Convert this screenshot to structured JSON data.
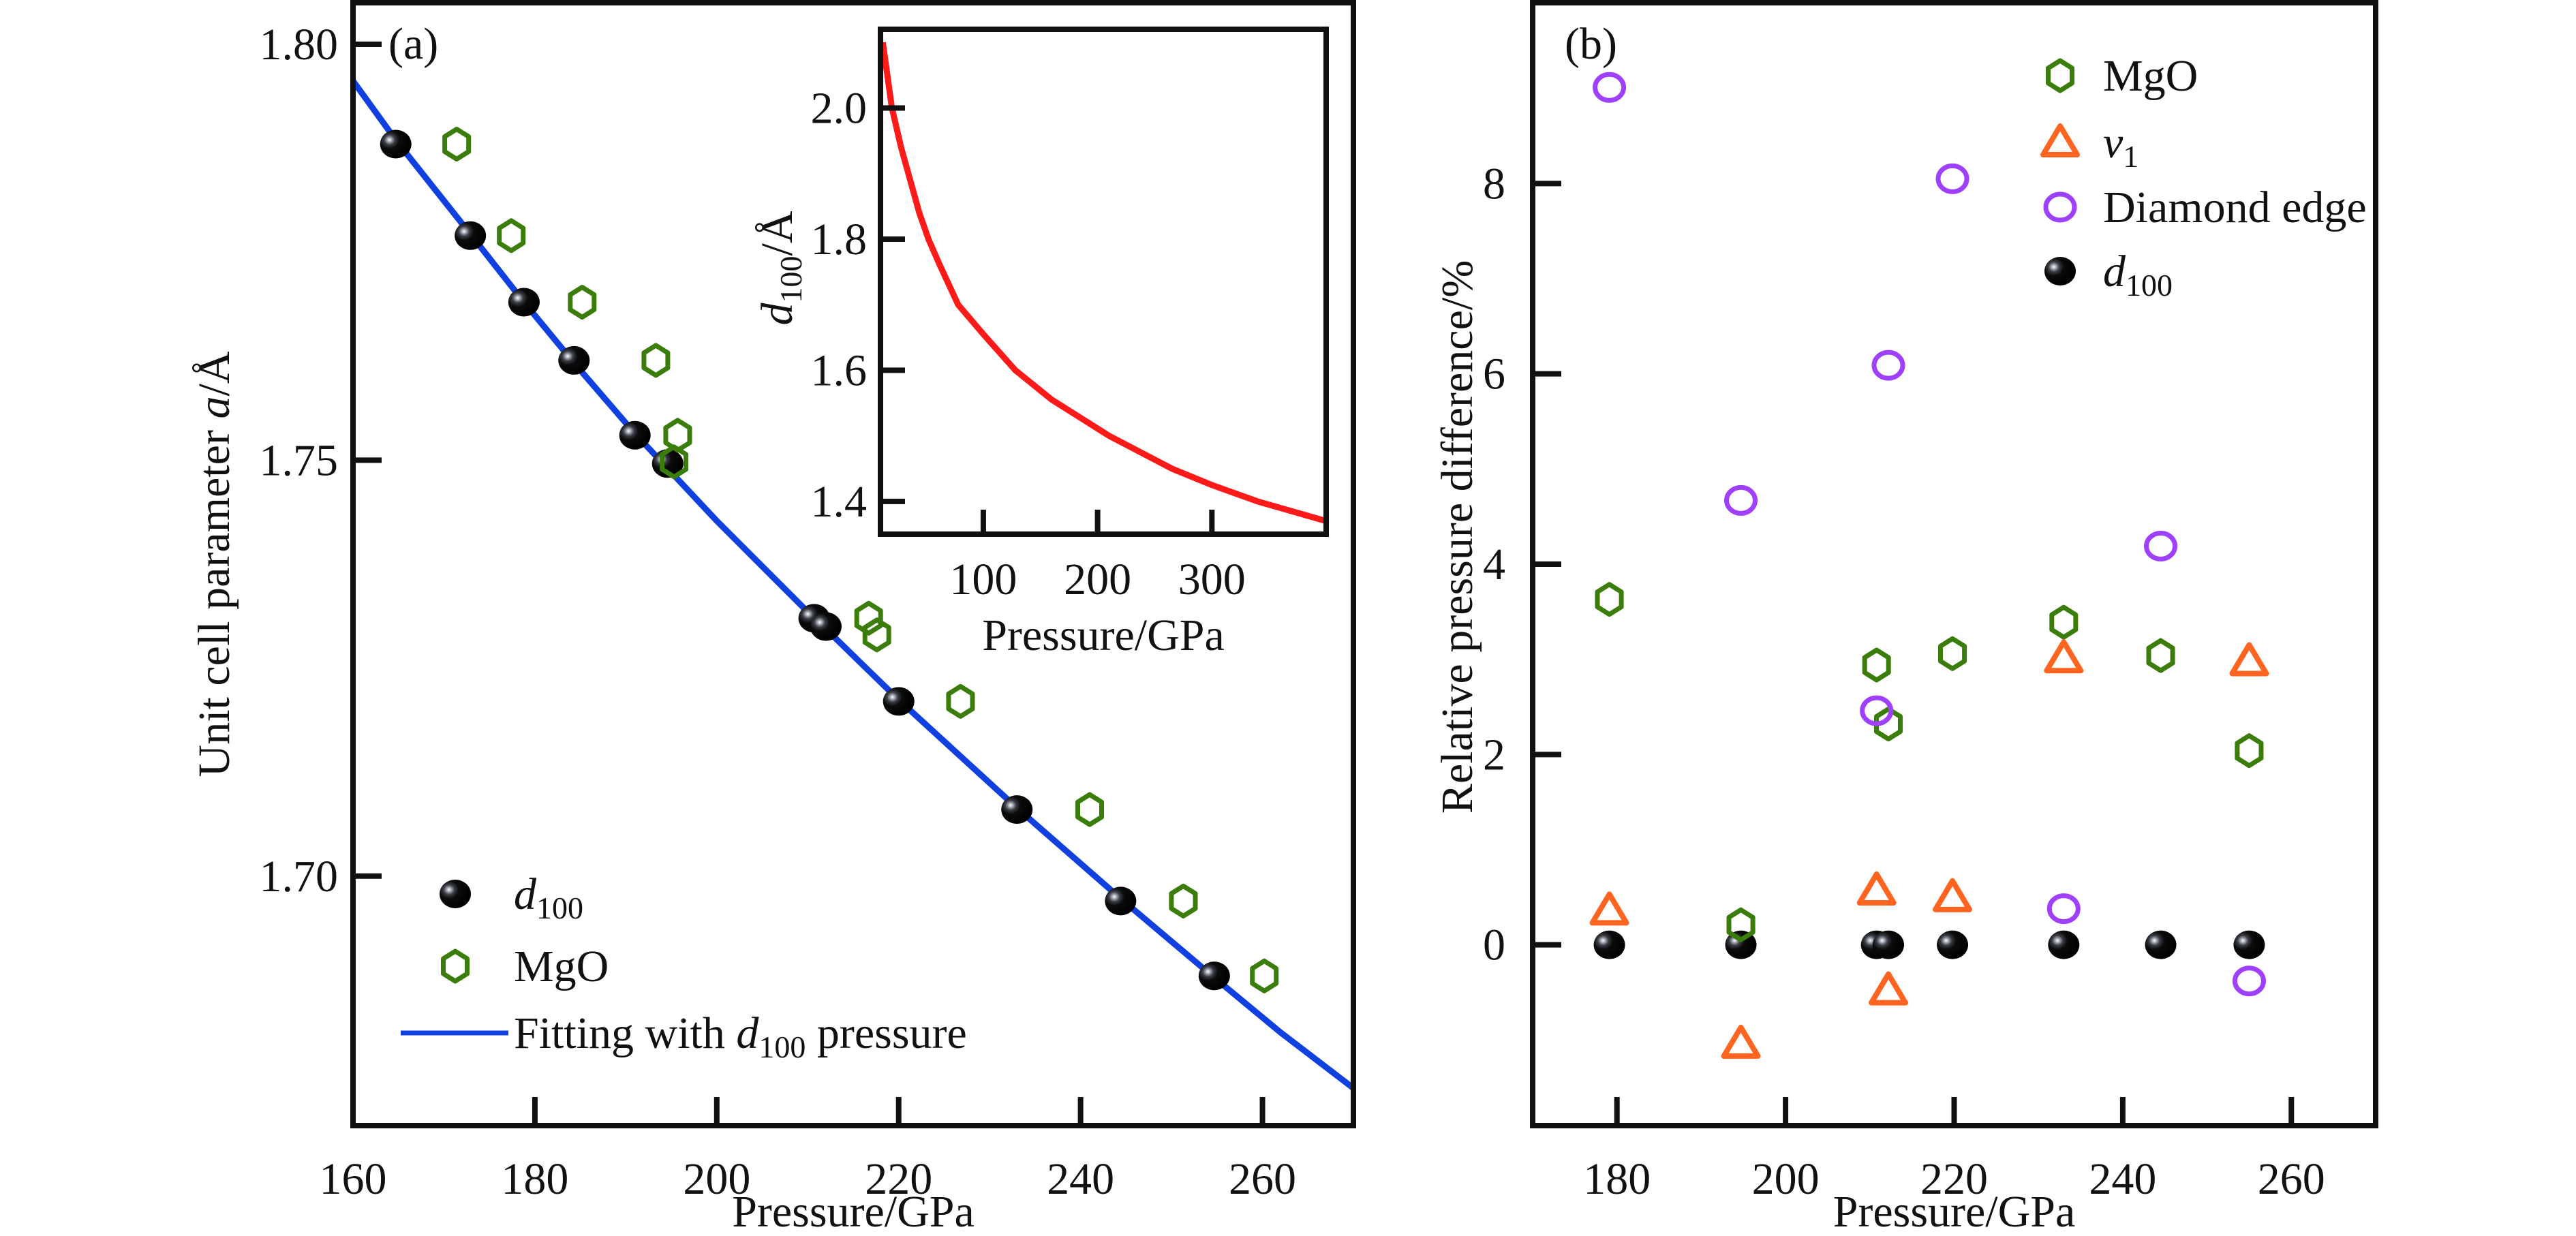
{
  "chart_data": [
    {
      "panel": "a",
      "type": "scatter",
      "panel_tag": "(a)",
      "xlabel": "Pressure/GPa",
      "ylabel": {
        "prefix": "Unit cell parameter ",
        "italic": "a",
        "suffix": "/Å"
      },
      "xlim": [
        160,
        270
      ],
      "ylim": [
        1.67,
        1.805
      ],
      "xticks": [
        160,
        180,
        200,
        220,
        240,
        260
      ],
      "xtick_labels": [
        "160",
        "180",
        "200",
        "220",
        "240",
        "260"
      ],
      "yticks": [
        1.7,
        1.75,
        1.8
      ],
      "ytick_labels": [
        "1.70",
        "1.75",
        "1.80"
      ],
      "grid": false,
      "legend_position": "bottom-left",
      "series": [
        {
          "name": "d100",
          "label_italic": "d",
          "label_sub": "100",
          "label_suffix": "",
          "marker": "sphere",
          "color": "#111111",
          "points": [
            [
              164.7,
              1.788
            ],
            [
              172.9,
              1.777
            ],
            [
              178.8,
              1.769
            ],
            [
              184.3,
              1.762
            ],
            [
              191.0,
              1.753
            ],
            [
              194.6,
              1.7496
            ],
            [
              210.7,
              1.731
            ],
            [
              212.0,
              1.73
            ],
            [
              220.0,
              1.721
            ],
            [
              233.0,
              1.708
            ],
            [
              244.4,
              1.697
            ],
            [
              254.7,
              1.688
            ]
          ]
        },
        {
          "name": "MgO",
          "label_text": "MgO",
          "marker": "hexagon",
          "color": "#3a7d0a",
          "points": [
            [
              171.4,
              1.788
            ],
            [
              177.4,
              1.777
            ],
            [
              185.2,
              1.769
            ],
            [
              193.3,
              1.762
            ],
            [
              195.7,
              1.753
            ],
            [
              195.3,
              1.7498
            ],
            [
              216.7,
              1.731
            ],
            [
              217.6,
              1.729
            ],
            [
              226.8,
              1.721
            ],
            [
              241.0,
              1.708
            ],
            [
              251.3,
              1.697
            ],
            [
              260.2,
              1.688
            ]
          ]
        },
        {
          "name": "Fitting with d100 pressure",
          "label_prefix": "Fitting with ",
          "label_italic": "d",
          "label_sub": "100",
          "label_suffix": " pressure",
          "marker": "line",
          "color": "#1040e0",
          "points": [
            [
              160,
              1.7956
            ],
            [
              164.7,
              1.7885
            ],
            [
              172.9,
              1.7772
            ],
            [
              178.8,
              1.769
            ],
            [
              184.3,
              1.7617
            ],
            [
              191.0,
              1.7532
            ],
            [
              194.6,
              1.749
            ],
            [
              200,
              1.7427
            ],
            [
              210.7,
              1.731
            ],
            [
              212.0,
              1.7297
            ],
            [
              220.0,
              1.7212
            ],
            [
              233.0,
              1.7082
            ],
            [
              244.4,
              1.6973
            ],
            [
              254.7,
              1.6878
            ],
            [
              262,
              1.6812
            ],
            [
              270,
              1.6745
            ]
          ]
        }
      ],
      "inset": {
        "type": "line",
        "xlabel": "Pressure/GPa",
        "ylabel": {
          "italic": "d",
          "sub": "100",
          "suffix": "/Å"
        },
        "xlim": [
          10,
          400
        ],
        "ylim": [
          1.35,
          2.12
        ],
        "xticks": [
          100,
          200,
          300
        ],
        "xtick_labels": [
          "100",
          "200",
          "300"
        ],
        "yticks": [
          1.4,
          1.6,
          1.8,
          2.0
        ],
        "ytick_labels": [
          "1.4",
          "1.6",
          "1.8",
          "2.0"
        ],
        "color": "#ff1a1a",
        "points": [
          [
            12,
            2.1
          ],
          [
            16,
            2.05
          ],
          [
            20,
            2.0
          ],
          [
            28,
            1.94
          ],
          [
            36,
            1.89
          ],
          [
            44,
            1.84
          ],
          [
            52,
            1.8
          ],
          [
            62,
            1.76
          ],
          [
            78,
            1.7
          ],
          [
            100,
            1.655
          ],
          [
            128,
            1.6
          ],
          [
            160,
            1.555
          ],
          [
            210,
            1.5
          ],
          [
            265,
            1.45
          ],
          [
            300,
            1.425
          ],
          [
            340,
            1.4
          ],
          [
            370,
            1.385
          ],
          [
            400,
            1.37
          ]
        ]
      }
    },
    {
      "panel": "b",
      "type": "scatter",
      "panel_tag": "(b)",
      "xlabel": "Pressure/GPa",
      "ylabel": "Relative pressure difference/%",
      "xlim": [
        170,
        270
      ],
      "ylim": [
        -1.9,
        9.9
      ],
      "xticks": [
        180,
        200,
        220,
        240,
        260
      ],
      "xtick_labels": [
        "180",
        "200",
        "220",
        "240",
        "260"
      ],
      "yticks": [
        0,
        2,
        4,
        6,
        8
      ],
      "ytick_labels": [
        "0",
        "2",
        "4",
        "6",
        "8"
      ],
      "grid": false,
      "legend_position": "top-right",
      "series": [
        {
          "name": "MgO",
          "label_text": "MgO",
          "marker": "hexagon",
          "color": "#3a7d0a",
          "points": [
            [
              179.1,
              3.63
            ],
            [
              194.7,
              0.21
            ],
            [
              210.8,
              2.94
            ],
            [
              212.2,
              2.32
            ],
            [
              219.8,
              3.06
            ],
            [
              233.0,
              3.39
            ],
            [
              244.5,
              3.04
            ],
            [
              255.0,
              2.04
            ]
          ]
        },
        {
          "name": "v1",
          "label_italic": "v",
          "label_sub": "1",
          "marker": "triangle",
          "color": "#ff6420",
          "points": [
            [
              179.1,
              0.36
            ],
            [
              194.7,
              -1.04
            ],
            [
              210.8,
              0.57
            ],
            [
              212.2,
              -0.48
            ],
            [
              219.8,
              0.5
            ],
            [
              233.0,
              3.01
            ],
            [
              255.0,
              2.98
            ]
          ]
        },
        {
          "name": "Diamond edge",
          "label_text": "Diamond edge",
          "marker": "circle",
          "color": "#a040ff",
          "points": [
            [
              179.1,
              9.01
            ],
            [
              194.7,
              4.67
            ],
            [
              210.8,
              2.46
            ],
            [
              212.2,
              6.09
            ],
            [
              219.8,
              8.05
            ],
            [
              233.0,
              0.38
            ],
            [
              244.5,
              4.19
            ],
            [
              255.0,
              -0.38
            ]
          ]
        },
        {
          "name": "d100",
          "label_italic": "d",
          "label_sub": "100",
          "marker": "sphere",
          "color": "#111111",
          "points": [
            [
              179.1,
              0
            ],
            [
              194.7,
              0
            ],
            [
              210.8,
              0
            ],
            [
              212.2,
              0
            ],
            [
              219.8,
              0
            ],
            [
              233.0,
              0
            ],
            [
              244.5,
              0
            ],
            [
              255.0,
              0
            ]
          ]
        }
      ]
    }
  ]
}
